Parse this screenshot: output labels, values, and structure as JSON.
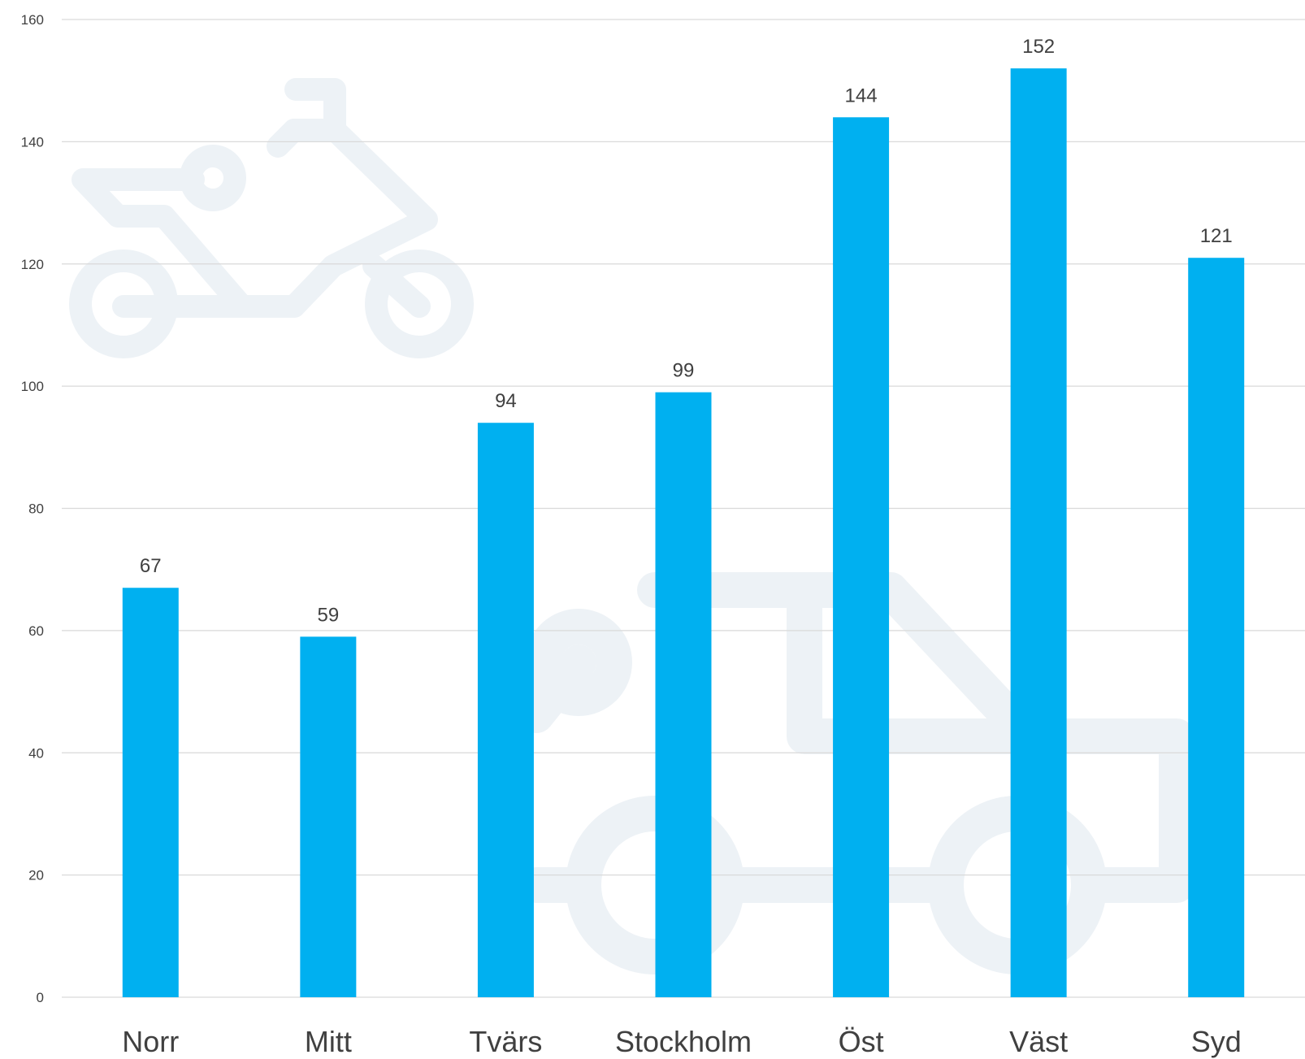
{
  "colors": {
    "bar": "#00b0f0",
    "grid": "#d9d9d9",
    "text": "#404040",
    "background_icons": "#edf2f6"
  },
  "background_icons": [
    "motorcycle-icon",
    "truck-icon"
  ],
  "chart_data": {
    "type": "bar",
    "categories": [
      "Norr",
      "Mitt",
      "Tvärs",
      "Stockholm",
      "Öst",
      "Väst",
      "Syd"
    ],
    "values": [
      67,
      59,
      94,
      99,
      144,
      152,
      121
    ],
    "data_labels": [
      "67",
      "59",
      "94",
      "99",
      "144",
      "152",
      "121"
    ],
    "title": "",
    "xlabel": "",
    "ylabel": "",
    "ylim": [
      0,
      160
    ],
    "yticks": [
      0,
      20,
      40,
      60,
      80,
      100,
      120,
      140,
      160
    ],
    "grid": true,
    "legend": false
  }
}
